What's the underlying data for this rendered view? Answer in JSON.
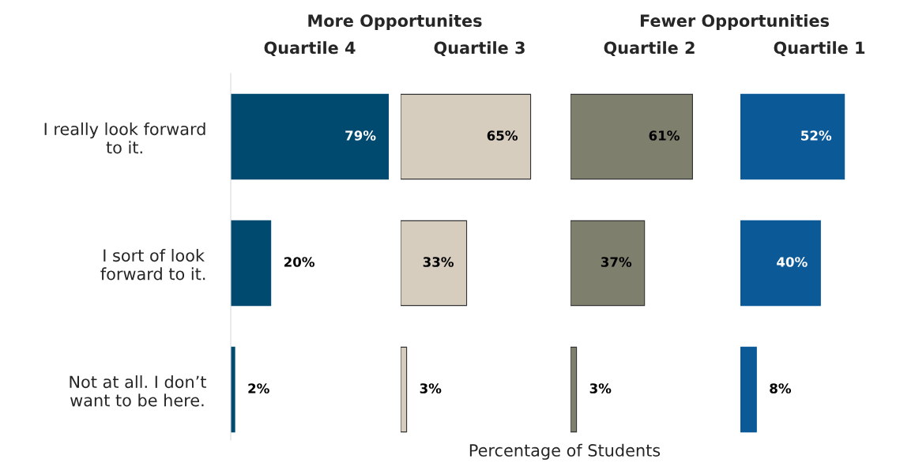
{
  "chart_data": [
    {
      "type": "bar",
      "orientation": "horizontal",
      "title": "Quartile 4",
      "annotations": [
        "More Opportunites"
      ],
      "categories": [
        "I really look forward to it.",
        "I sort of look forward to it.",
        "Not at all. I don’t want to be here."
      ],
      "values": [
        79,
        20,
        2
      ],
      "value_labels": [
        "79%",
        "20%",
        "2%"
      ],
      "color": "#004a70",
      "tick_labels": "y"
    },
    {
      "type": "bar",
      "orientation": "horizontal",
      "title": "Quartile 3",
      "xlabel": "Percentage of Students",
      "categories": [
        null,
        null,
        null
      ],
      "values": [
        65,
        33,
        3
      ],
      "value_labels": [
        "65%",
        "33%",
        "3%"
      ],
      "color": "#d6cdbf",
      "tick_labels": false
    },
    {
      "type": "bar",
      "orientation": "horizontal",
      "title": "Quartile 2",
      "annotations": [
        "Fewer Opportunities"
      ],
      "categories": [
        null,
        null,
        null
      ],
      "values": [
        61,
        37,
        3
      ],
      "value_labels": [
        "61%",
        "37%",
        "3%"
      ],
      "color": "#7f7f6e",
      "tick_labels": false
    },
    {
      "type": "bar",
      "orientation": "horizontal",
      "title": "Quartile 1",
      "categories": [
        null,
        null,
        null
      ],
      "values": [
        52,
        40,
        8
      ],
      "value_labels": [
        "52%",
        "40%",
        "8%"
      ],
      "color": "#0b5a97",
      "tick_labels": false
    }
  ]
}
